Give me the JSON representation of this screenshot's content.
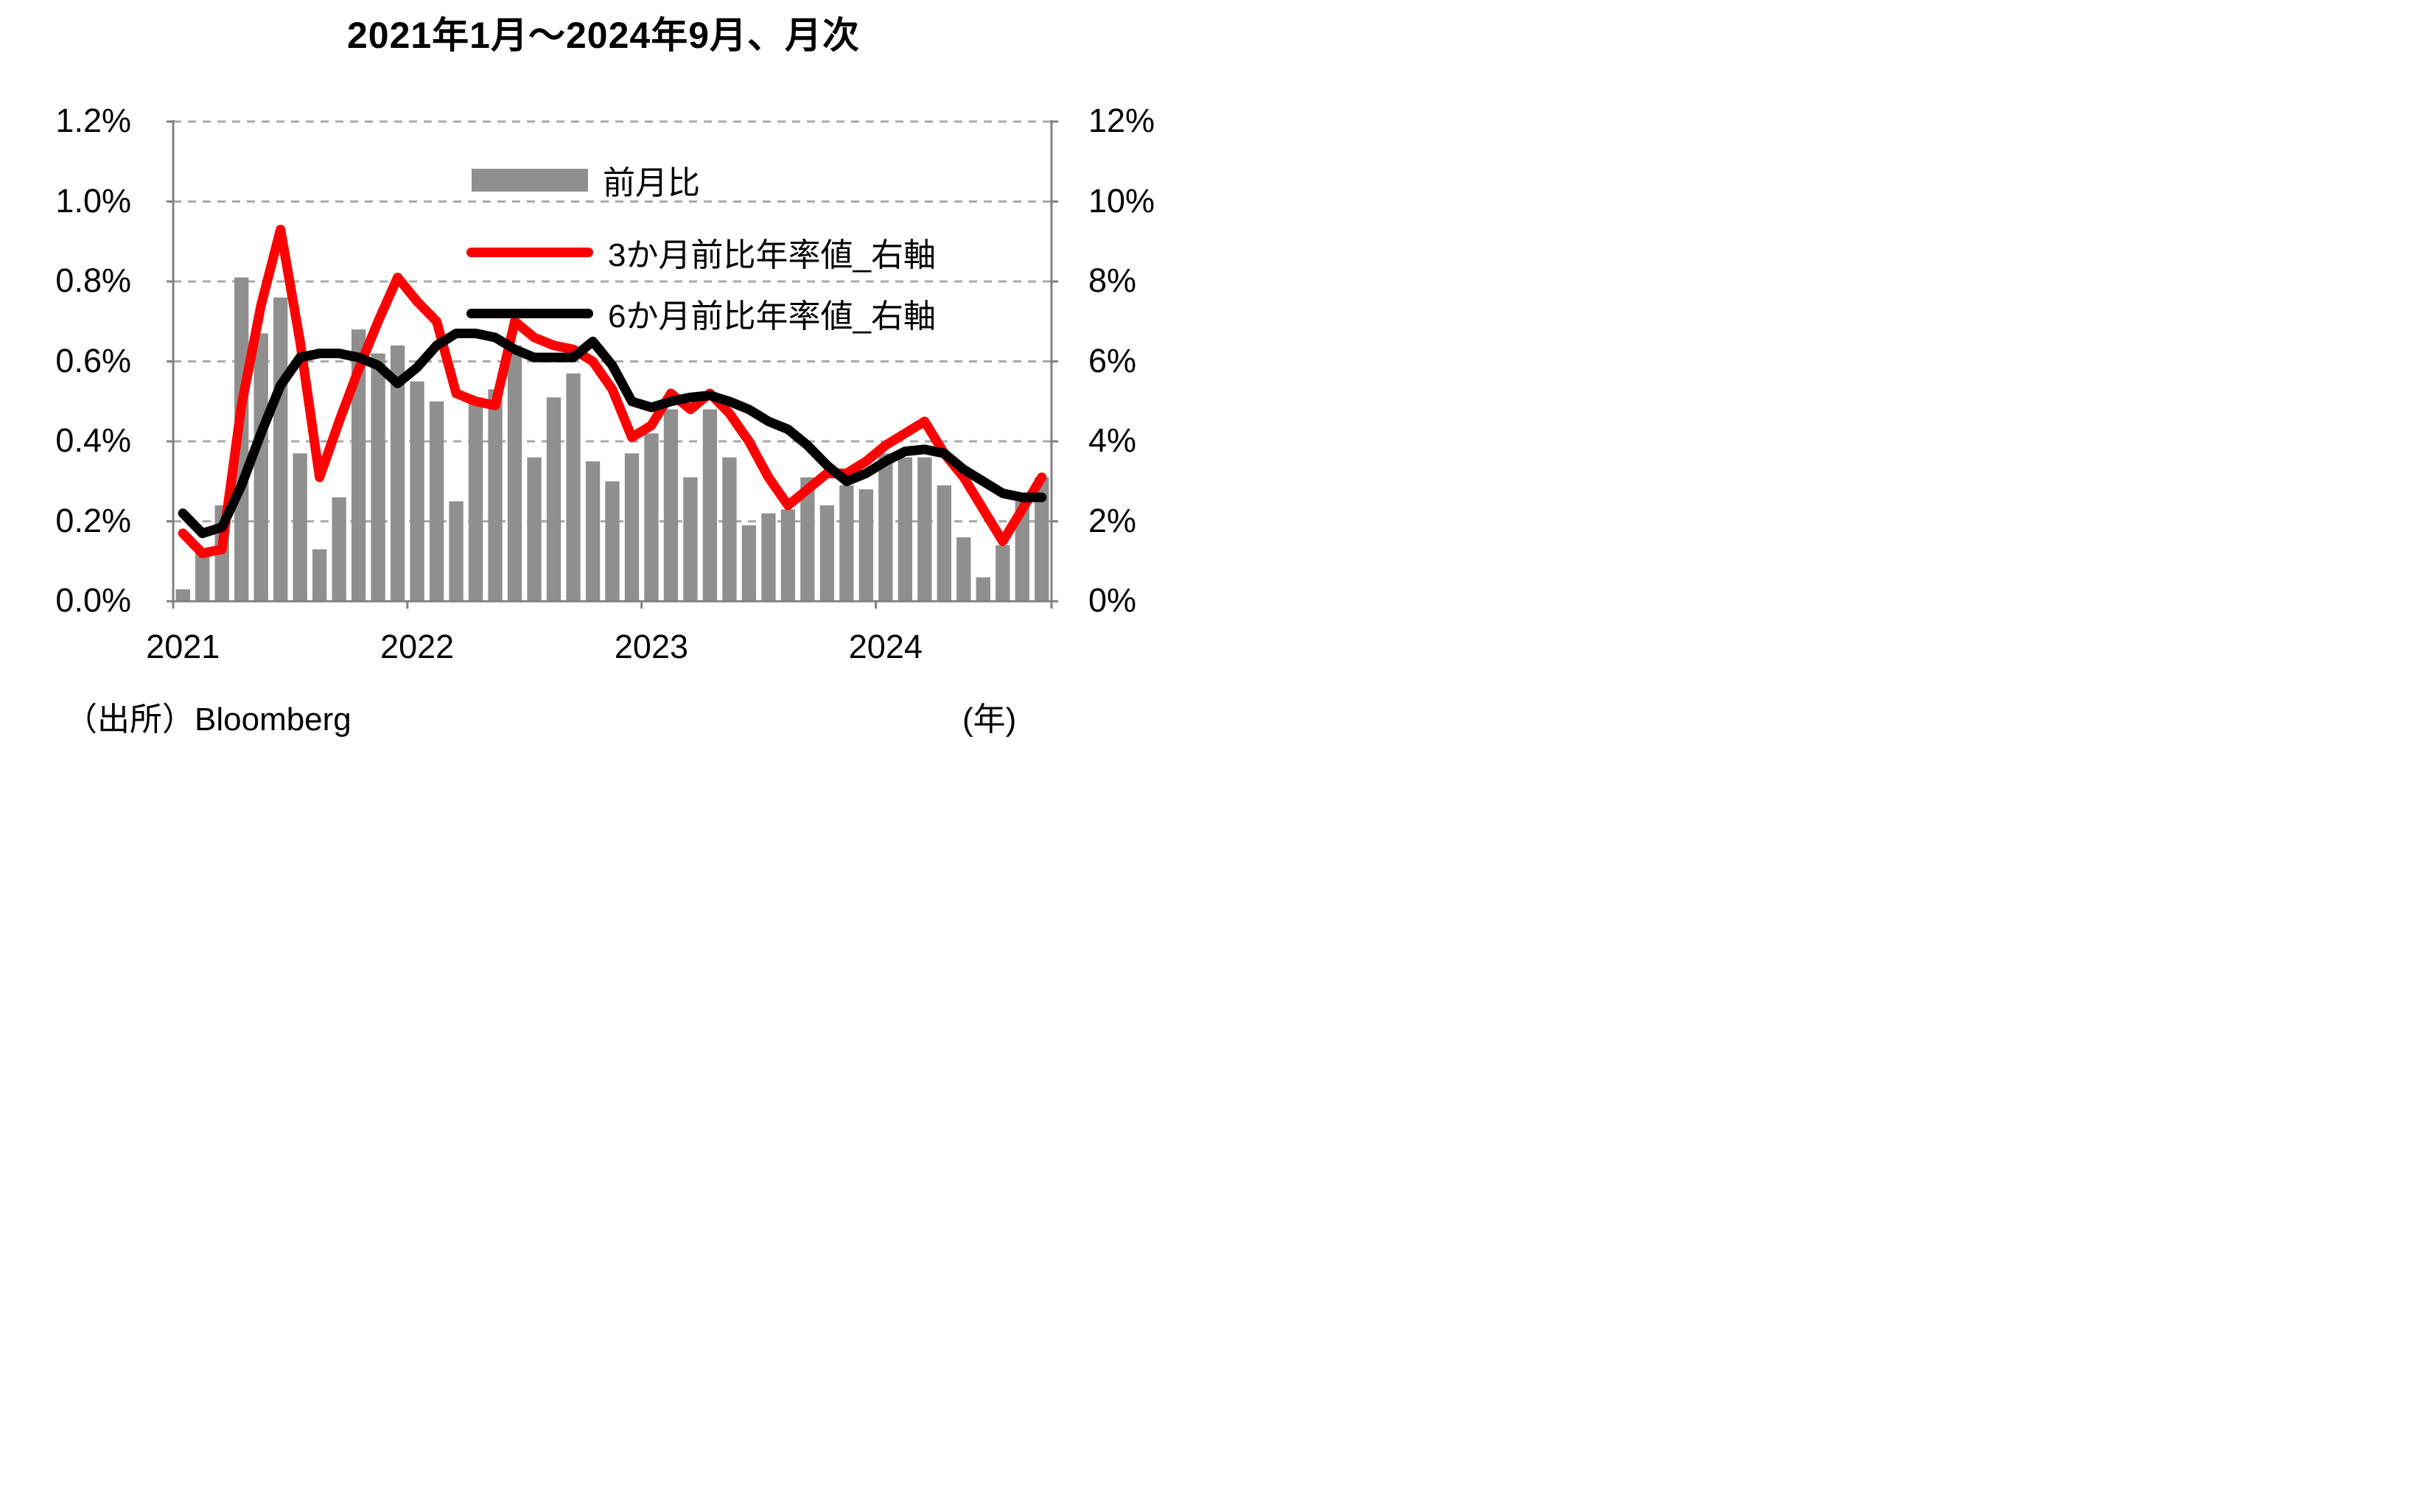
{
  "title": "2021年1月～2024年9月、月次",
  "footer": {
    "source": "（出所）Bloomberg",
    "x_unit": "(年)"
  },
  "chart_data": {
    "type": "bar",
    "subtype": "combo-bar-and-lines",
    "grid": "horizontal-dashed",
    "legend_position": "inside-top-center",
    "months": [
      "2021-01",
      "2021-02",
      "2021-03",
      "2021-04",
      "2021-05",
      "2021-06",
      "2021-07",
      "2021-08",
      "2021-09",
      "2021-10",
      "2021-11",
      "2021-12",
      "2022-01",
      "2022-02",
      "2022-03",
      "2022-04",
      "2022-05",
      "2022-06",
      "2022-07",
      "2022-08",
      "2022-09",
      "2022-10",
      "2022-11",
      "2022-12",
      "2023-01",
      "2023-02",
      "2023-03",
      "2023-04",
      "2023-05",
      "2023-06",
      "2023-07",
      "2023-08",
      "2023-09",
      "2023-10",
      "2023-11",
      "2023-12",
      "2024-01",
      "2024-02",
      "2024-03",
      "2024-04",
      "2024-05",
      "2024-06",
      "2024-07",
      "2024-08",
      "2024-09"
    ],
    "x_year_labels": [
      "2021",
      "2022",
      "2023",
      "2024"
    ],
    "left_axis": {
      "title": "",
      "min": 0,
      "max": 1.2,
      "ticks": [
        "0.0%",
        "0.2%",
        "0.4%",
        "0.6%",
        "0.8%",
        "1.0%",
        "1.2%"
      ]
    },
    "right_axis": {
      "title": "",
      "min": 0,
      "max": 12,
      "ticks": [
        "0%",
        "2%",
        "4%",
        "6%",
        "8%",
        "10%",
        "12%"
      ]
    },
    "series": [
      {
        "name": "前月比",
        "type": "bar",
        "axis": "left",
        "color": "#8f8f8f",
        "values": [
          0.03,
          0.12,
          0.24,
          0.81,
          0.67,
          0.76,
          0.37,
          0.13,
          0.26,
          0.68,
          0.62,
          0.64,
          0.55,
          0.5,
          0.25,
          0.51,
          0.53,
          0.64,
          0.36,
          0.51,
          0.57,
          0.35,
          0.3,
          0.37,
          0.42,
          0.48,
          0.31,
          0.48,
          0.36,
          0.19,
          0.22,
          0.23,
          0.31,
          0.24,
          0.29,
          0.28,
          0.37,
          0.36,
          0.36,
          0.29,
          0.16,
          0.06,
          0.14,
          0.25,
          0.31
        ]
      },
      {
        "name": "3か月前比年率値_右軸",
        "type": "line",
        "axis": "right",
        "color": "#ff0000",
        "values": [
          1.7,
          1.2,
          1.3,
          4.9,
          7.4,
          9.3,
          6.5,
          3.1,
          4.5,
          5.8,
          7.0,
          8.1,
          7.5,
          7.0,
          5.2,
          5.0,
          4.9,
          7.0,
          6.6,
          6.4,
          6.3,
          6.0,
          5.3,
          4.1,
          4.4,
          5.2,
          4.8,
          5.2,
          4.7,
          4.0,
          3.1,
          2.4,
          2.8,
          3.2,
          3.2,
          3.5,
          3.9,
          4.2,
          4.5,
          3.7,
          3.1,
          2.3,
          1.5,
          2.3,
          3.1
        ]
      },
      {
        "name": "6か月前比年率値_右軸",
        "type": "line",
        "axis": "right",
        "color": "#000000",
        "values": [
          2.2,
          1.7,
          1.85,
          2.9,
          4.2,
          5.4,
          6.1,
          6.2,
          6.2,
          6.1,
          5.9,
          5.45,
          5.85,
          6.4,
          6.7,
          6.7,
          6.6,
          6.3,
          6.1,
          6.1,
          6.1,
          6.5,
          5.9,
          5.0,
          4.85,
          5.0,
          5.1,
          5.15,
          5.0,
          4.8,
          4.5,
          4.3,
          3.9,
          3.4,
          3.0,
          3.2,
          3.5,
          3.75,
          3.8,
          3.7,
          3.3,
          3.0,
          2.7,
          2.6,
          2.6
        ]
      }
    ],
    "colors": {
      "bar": "#8f8f8f",
      "line_3m": "#ff0000",
      "line_6m": "#000000",
      "gridline": "#a9a9a9",
      "axis": "#808080"
    }
  }
}
